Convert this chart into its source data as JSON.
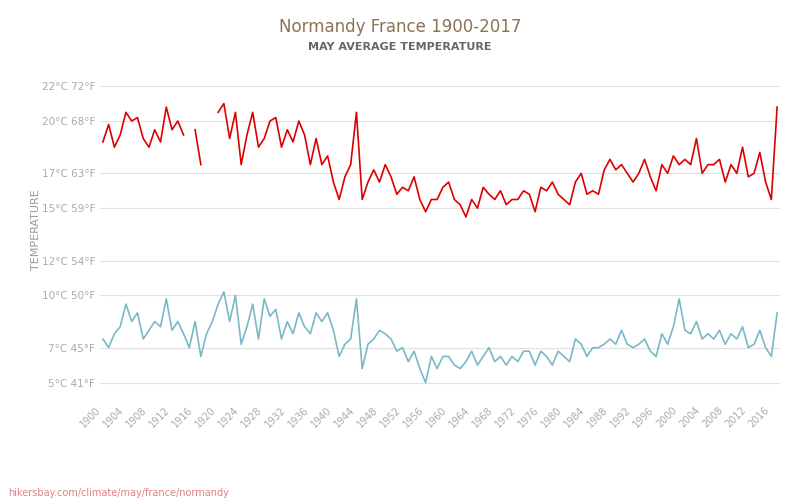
{
  "title": "Normandy France 1900-2017",
  "subtitle": "MAY AVERAGE TEMPERATURE",
  "ylabel": "TEMPERATURE",
  "xlabel_url": "hikersbay.com/climate/may/france/normandy",
  "y_ticks_c": [
    5,
    7,
    10,
    12,
    15,
    17,
    20,
    22
  ],
  "y_ticks_f": [
    41,
    45,
    50,
    54,
    59,
    63,
    68,
    72
  ],
  "ylim": [
    4.0,
    23.5
  ],
  "xlim": [
    1899.5,
    2017.5
  ],
  "x_ticks": [
    1900,
    1904,
    1908,
    1912,
    1916,
    1920,
    1924,
    1928,
    1932,
    1936,
    1940,
    1944,
    1948,
    1952,
    1956,
    1960,
    1964,
    1968,
    1972,
    1976,
    1980,
    1984,
    1988,
    1992,
    1996,
    2000,
    2004,
    2008,
    2012,
    2016
  ],
  "title_color": "#8c7355",
  "subtitle_color": "#666666",
  "day_color": "#dd0000",
  "night_color": "#7ab8c8",
  "grid_color": "#e0e0e0",
  "background_color": "#ffffff",
  "tick_color": "#aaaaaa",
  "day_data": {
    "years": [
      1900,
      1901,
      1902,
      1903,
      1904,
      1905,
      1906,
      1907,
      1908,
      1909,
      1910,
      1911,
      1912,
      1913,
      1914,
      1915,
      1916,
      1917,
      1918,
      1919,
      1920,
      1921,
      1922,
      1923,
      1924,
      1925,
      1926,
      1927,
      1928,
      1929,
      1930,
      1931,
      1932,
      1933,
      1934,
      1935,
      1936,
      1937,
      1938,
      1939,
      1940,
      1941,
      1942,
      1943,
      1944,
      1945,
      1946,
      1947,
      1948,
      1949,
      1950,
      1951,
      1952,
      1953,
      1954,
      1955,
      1956,
      1957,
      1958,
      1959,
      1960,
      1961,
      1962,
      1963,
      1964,
      1965,
      1966,
      1967,
      1968,
      1969,
      1970,
      1971,
      1972,
      1973,
      1974,
      1975,
      1976,
      1977,
      1978,
      1979,
      1980,
      1981,
      1982,
      1983,
      1984,
      1985,
      1986,
      1987,
      1988,
      1989,
      1990,
      1991,
      1992,
      1993,
      1994,
      1995,
      1996,
      1997,
      1998,
      1999,
      2000,
      2001,
      2002,
      2003,
      2004,
      2005,
      2006,
      2007,
      2008,
      2009,
      2010,
      2011,
      2012,
      2013,
      2014,
      2015,
      2016,
      2017
    ],
    "temps": [
      18.8,
      19.8,
      18.5,
      19.2,
      20.5,
      20.0,
      20.2,
      19.0,
      18.5,
      19.5,
      18.8,
      20.8,
      19.5,
      20.0,
      19.2,
      null,
      19.5,
      17.5,
      null,
      null,
      20.5,
      21.0,
      19.0,
      20.5,
      17.5,
      19.2,
      20.5,
      18.5,
      19.0,
      20.0,
      20.2,
      18.5,
      19.5,
      18.8,
      20.0,
      19.2,
      17.5,
      19.0,
      17.5,
      18.0,
      16.5,
      15.5,
      16.8,
      17.5,
      20.5,
      15.5,
      16.5,
      17.2,
      16.5,
      17.5,
      16.8,
      15.8,
      16.2,
      16.0,
      16.8,
      15.5,
      14.8,
      15.5,
      15.5,
      16.2,
      16.5,
      15.5,
      15.2,
      14.5,
      15.5,
      15.0,
      16.2,
      15.8,
      15.5,
      16.0,
      15.2,
      15.5,
      15.5,
      16.0,
      15.8,
      14.8,
      16.2,
      16.0,
      16.5,
      15.8,
      15.5,
      15.2,
      16.5,
      17.0,
      15.8,
      16.0,
      15.8,
      17.2,
      17.8,
      17.2,
      17.5,
      17.0,
      16.5,
      17.0,
      17.8,
      16.8,
      16.0,
      17.5,
      17.0,
      18.0,
      17.5,
      17.8,
      17.5,
      19.0,
      17.0,
      17.5,
      17.5,
      17.8,
      16.5,
      17.5,
      17.0,
      18.5,
      16.8,
      17.0,
      18.2,
      16.5,
      15.5,
      20.8
    ]
  },
  "night_data": {
    "years": [
      1900,
      1901,
      1902,
      1903,
      1904,
      1905,
      1906,
      1907,
      1908,
      1909,
      1910,
      1911,
      1912,
      1913,
      1914,
      1915,
      1916,
      1917,
      1918,
      1919,
      1920,
      1921,
      1922,
      1923,
      1924,
      1925,
      1926,
      1927,
      1928,
      1929,
      1930,
      1931,
      1932,
      1933,
      1934,
      1935,
      1936,
      1937,
      1938,
      1939,
      1940,
      1941,
      1942,
      1943,
      1944,
      1945,
      1946,
      1947,
      1948,
      1949,
      1950,
      1951,
      1952,
      1953,
      1954,
      1955,
      1956,
      1957,
      1958,
      1959,
      1960,
      1961,
      1962,
      1963,
      1964,
      1965,
      1966,
      1967,
      1968,
      1969,
      1970,
      1971,
      1972,
      1973,
      1974,
      1975,
      1976,
      1977,
      1978,
      1979,
      1980,
      1981,
      1982,
      1983,
      1984,
      1985,
      1986,
      1987,
      1988,
      1989,
      1990,
      1991,
      1992,
      1993,
      1994,
      1995,
      1996,
      1997,
      1998,
      1999,
      2000,
      2001,
      2002,
      2003,
      2004,
      2005,
      2006,
      2007,
      2008,
      2009,
      2010,
      2011,
      2012,
      2013,
      2014,
      2015,
      2016,
      2017
    ],
    "temps": [
      7.5,
      7.0,
      7.8,
      8.2,
      9.5,
      8.5,
      9.0,
      7.5,
      8.0,
      8.5,
      8.2,
      9.8,
      8.0,
      8.5,
      7.8,
      7.0,
      8.5,
      6.5,
      7.8,
      8.5,
      9.5,
      10.2,
      8.5,
      10.0,
      7.2,
      8.2,
      9.5,
      7.5,
      9.8,
      8.8,
      9.2,
      7.5,
      8.5,
      7.8,
      9.0,
      8.2,
      7.8,
      9.0,
      8.5,
      9.0,
      8.0,
      6.5,
      7.2,
      7.5,
      9.8,
      5.8,
      7.2,
      7.5,
      8.0,
      7.8,
      7.5,
      6.8,
      7.0,
      6.2,
      6.8,
      5.8,
      5.0,
      6.5,
      5.8,
      6.5,
      6.5,
      6.0,
      5.8,
      6.2,
      6.8,
      6.0,
      6.5,
      7.0,
      6.2,
      6.5,
      6.0,
      6.5,
      6.2,
      6.8,
      6.8,
      6.0,
      6.8,
      6.5,
      6.0,
      6.8,
      6.5,
      6.2,
      7.5,
      7.2,
      6.5,
      7.0,
      7.0,
      7.2,
      7.5,
      7.2,
      8.0,
      7.2,
      7.0,
      7.2,
      7.5,
      6.8,
      6.5,
      7.8,
      7.2,
      8.2,
      9.8,
      8.0,
      7.8,
      8.5,
      7.5,
      7.8,
      7.5,
      8.0,
      7.2,
      7.8,
      7.5,
      8.2,
      7.0,
      7.2,
      8.0,
      7.0,
      6.5,
      9.0
    ]
  }
}
